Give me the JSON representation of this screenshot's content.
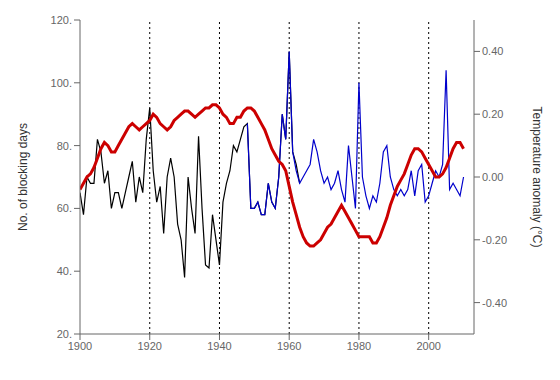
{
  "chart_data": {
    "type": "line",
    "ylabel": "No. of blocking days",
    "y2label": "Temperature anomaly (°C)",
    "xlim": [
      1900,
      2013
    ],
    "ylim": [
      20,
      120
    ],
    "y2lim": [
      -0.5,
      0.5
    ],
    "xticks": [
      1900,
      1920,
      1940,
      1960,
      1980,
      2000
    ],
    "yticks": [
      {
        "value": 20,
        "label": "20."
      },
      {
        "value": 40,
        "label": "40."
      },
      {
        "value": 60,
        "label": "60."
      },
      {
        "value": 80,
        "label": "80."
      },
      {
        "value": 100,
        "label": "100."
      },
      {
        "value": 120,
        "label": "120."
      }
    ],
    "y2ticks": [
      {
        "value": -0.4,
        "label": "-0.40"
      },
      {
        "value": -0.2,
        "label": "-0.20"
      },
      {
        "value": 0,
        "label": "0.00"
      },
      {
        "value": 0.2,
        "label": "0.20"
      },
      {
        "value": 0.4,
        "label": "0.40"
      }
    ],
    "grid": false,
    "vlines": [
      1920,
      1940,
      1960,
      1980,
      2000
    ],
    "series": [
      {
        "color": "#000000",
        "x": [
          1900,
          1901,
          1902,
          1903,
          1904,
          1905,
          1906,
          1907,
          1908,
          1909,
          1910,
          1911,
          1912,
          1913,
          1914,
          1915,
          1916,
          1917,
          1918,
          1919,
          1920,
          1921,
          1922,
          1923,
          1924,
          1925,
          1926,
          1927,
          1928,
          1929,
          1930,
          1931,
          1932,
          1933,
          1934,
          1935,
          1936,
          1937,
          1938,
          1939,
          1940,
          1941,
          1942,
          1943,
          1944,
          1945,
          1946,
          1947,
          1948,
          1949,
          1950,
          1951,
          1952,
          1953,
          1954,
          1955,
          1956,
          1957,
          1958,
          1959,
          1960,
          1961,
          1962,
          1963
        ],
        "values": [
          65,
          58,
          70,
          68,
          68,
          82,
          78,
          68,
          72,
          60,
          65,
          65,
          60,
          65,
          70,
          75,
          62,
          70,
          65,
          82,
          92,
          72,
          62,
          67,
          52,
          70,
          76,
          70,
          55,
          50,
          38,
          70,
          60,
          52,
          83,
          60,
          42,
          41,
          58,
          50,
          42,
          62,
          68,
          72,
          80,
          78,
          82,
          86,
          87,
          60,
          60,
          62,
          58,
          58,
          68,
          62,
          60,
          70,
          90,
          82,
          110,
          78,
          74,
          68
        ]
      },
      {
        "color": "#0000cc",
        "x": [
          1948,
          1949,
          1950,
          1951,
          1952,
          1953,
          1954,
          1955,
          1956,
          1957,
          1958,
          1959,
          1960,
          1961,
          1962,
          1963,
          1964,
          1965,
          1966,
          1967,
          1968,
          1969,
          1970,
          1971,
          1972,
          1973,
          1974,
          1975,
          1976,
          1977,
          1978,
          1979,
          1980,
          1981,
          1982,
          1983,
          1984,
          1985,
          1986,
          1987,
          1988,
          1989,
          1990,
          1991,
          1992,
          1993,
          1994,
          1995,
          1996,
          1997,
          1998,
          1999,
          2000,
          2001,
          2002,
          2003,
          2004,
          2005,
          2006,
          2007,
          2008,
          2009,
          2010
        ],
        "values": [
          87,
          60,
          60,
          62,
          58,
          58,
          68,
          62,
          60,
          70,
          90,
          82,
          110,
          78,
          72,
          68,
          70,
          72,
          74,
          82,
          78,
          72,
          68,
          70,
          66,
          68,
          72,
          66,
          62,
          80,
          70,
          60,
          100,
          70,
          64,
          60,
          64,
          62,
          68,
          78,
          80,
          70,
          66,
          64,
          66,
          64,
          66,
          72,
          64,
          72,
          74,
          62,
          64,
          68,
          72,
          70,
          74,
          104,
          66,
          68,
          66,
          64,
          70
        ]
      },
      {
        "color": "#cc0000",
        "axis": "y2",
        "x": [
          1900,
          1901,
          1902,
          1903,
          1904,
          1905,
          1906,
          1907,
          1908,
          1909,
          1910,
          1911,
          1912,
          1913,
          1914,
          1915,
          1916,
          1917,
          1918,
          1919,
          1920,
          1921,
          1922,
          1923,
          1924,
          1925,
          1926,
          1927,
          1928,
          1929,
          1930,
          1931,
          1932,
          1933,
          1934,
          1935,
          1936,
          1937,
          1938,
          1939,
          1940,
          1941,
          1942,
          1943,
          1944,
          1945,
          1946,
          1947,
          1948,
          1949,
          1950,
          1951,
          1952,
          1953,
          1954,
          1955,
          1956,
          1957,
          1958,
          1959,
          1960,
          1961,
          1962,
          1963,
          1964,
          1965,
          1966,
          1967,
          1968,
          1969,
          1970,
          1971,
          1972,
          1973,
          1974,
          1975,
          1976,
          1977,
          1978,
          1979,
          1980,
          1981,
          1982,
          1983,
          1984,
          1985,
          1986,
          1987,
          1988,
          1989,
          1990,
          1991,
          1992,
          1993,
          1994,
          1995,
          1996,
          1997,
          1998,
          1999,
          2000,
          2001,
          2002,
          2003,
          2004,
          2005,
          2006,
          2007,
          2008,
          2009,
          2010
        ],
        "values": [
          -0.04,
          -0.02,
          0.0,
          0.01,
          0.03,
          0.06,
          0.09,
          0.11,
          0.1,
          0.08,
          0.08,
          0.1,
          0.12,
          0.14,
          0.16,
          0.17,
          0.16,
          0.15,
          0.16,
          0.17,
          0.18,
          0.2,
          0.19,
          0.17,
          0.16,
          0.15,
          0.16,
          0.18,
          0.19,
          0.2,
          0.21,
          0.21,
          0.2,
          0.19,
          0.2,
          0.21,
          0.22,
          0.22,
          0.23,
          0.23,
          0.22,
          0.2,
          0.19,
          0.17,
          0.17,
          0.19,
          0.19,
          0.21,
          0.22,
          0.22,
          0.21,
          0.19,
          0.17,
          0.15,
          0.12,
          0.09,
          0.07,
          0.05,
          0.04,
          0.02,
          -0.03,
          -0.08,
          -0.12,
          -0.16,
          -0.19,
          -0.21,
          -0.22,
          -0.22,
          -0.21,
          -0.2,
          -0.18,
          -0.16,
          -0.15,
          -0.13,
          -0.11,
          -0.09,
          -0.11,
          -0.13,
          -0.15,
          -0.17,
          -0.19,
          -0.19,
          -0.19,
          -0.19,
          -0.21,
          -0.21,
          -0.19,
          -0.16,
          -0.13,
          -0.09,
          -0.06,
          -0.03,
          -0.01,
          0.01,
          0.04,
          0.07,
          0.09,
          0.09,
          0.08,
          0.06,
          0.04,
          0.02,
          0.0,
          0.0,
          0.01,
          0.03,
          0.06,
          0.09,
          0.11,
          0.11,
          0.09
        ]
      }
    ]
  }
}
